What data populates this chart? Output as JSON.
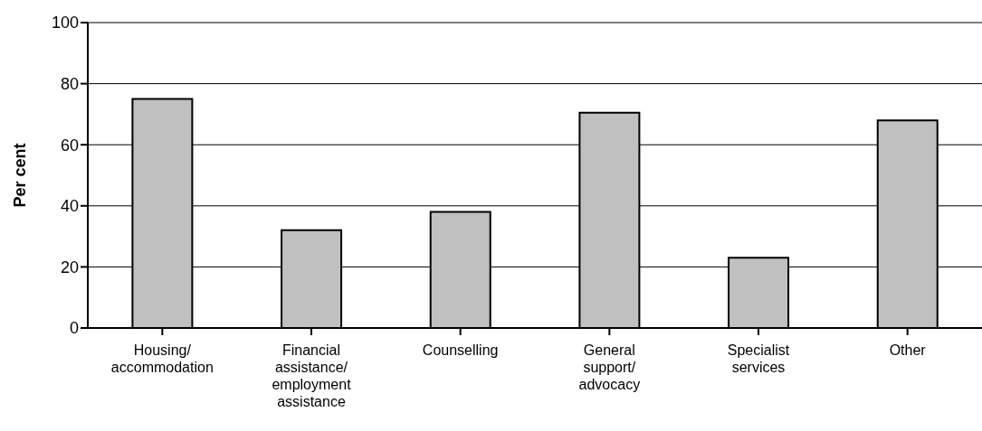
{
  "chart_data": {
    "type": "bar",
    "ylabel": "Per cent",
    "categories": [
      "Housing/ accommodation",
      "Financial assistance/ employment assistance",
      "Counselling",
      "General support/ advocacy",
      "Specialist services",
      "Other"
    ],
    "values": [
      75,
      32,
      38,
      70.5,
      23,
      68
    ],
    "color": "#c0c0c0",
    "ylim": [
      0,
      100
    ],
    "yticks": [
      0,
      20,
      40,
      60,
      80,
      100
    ],
    "grid": "y"
  }
}
